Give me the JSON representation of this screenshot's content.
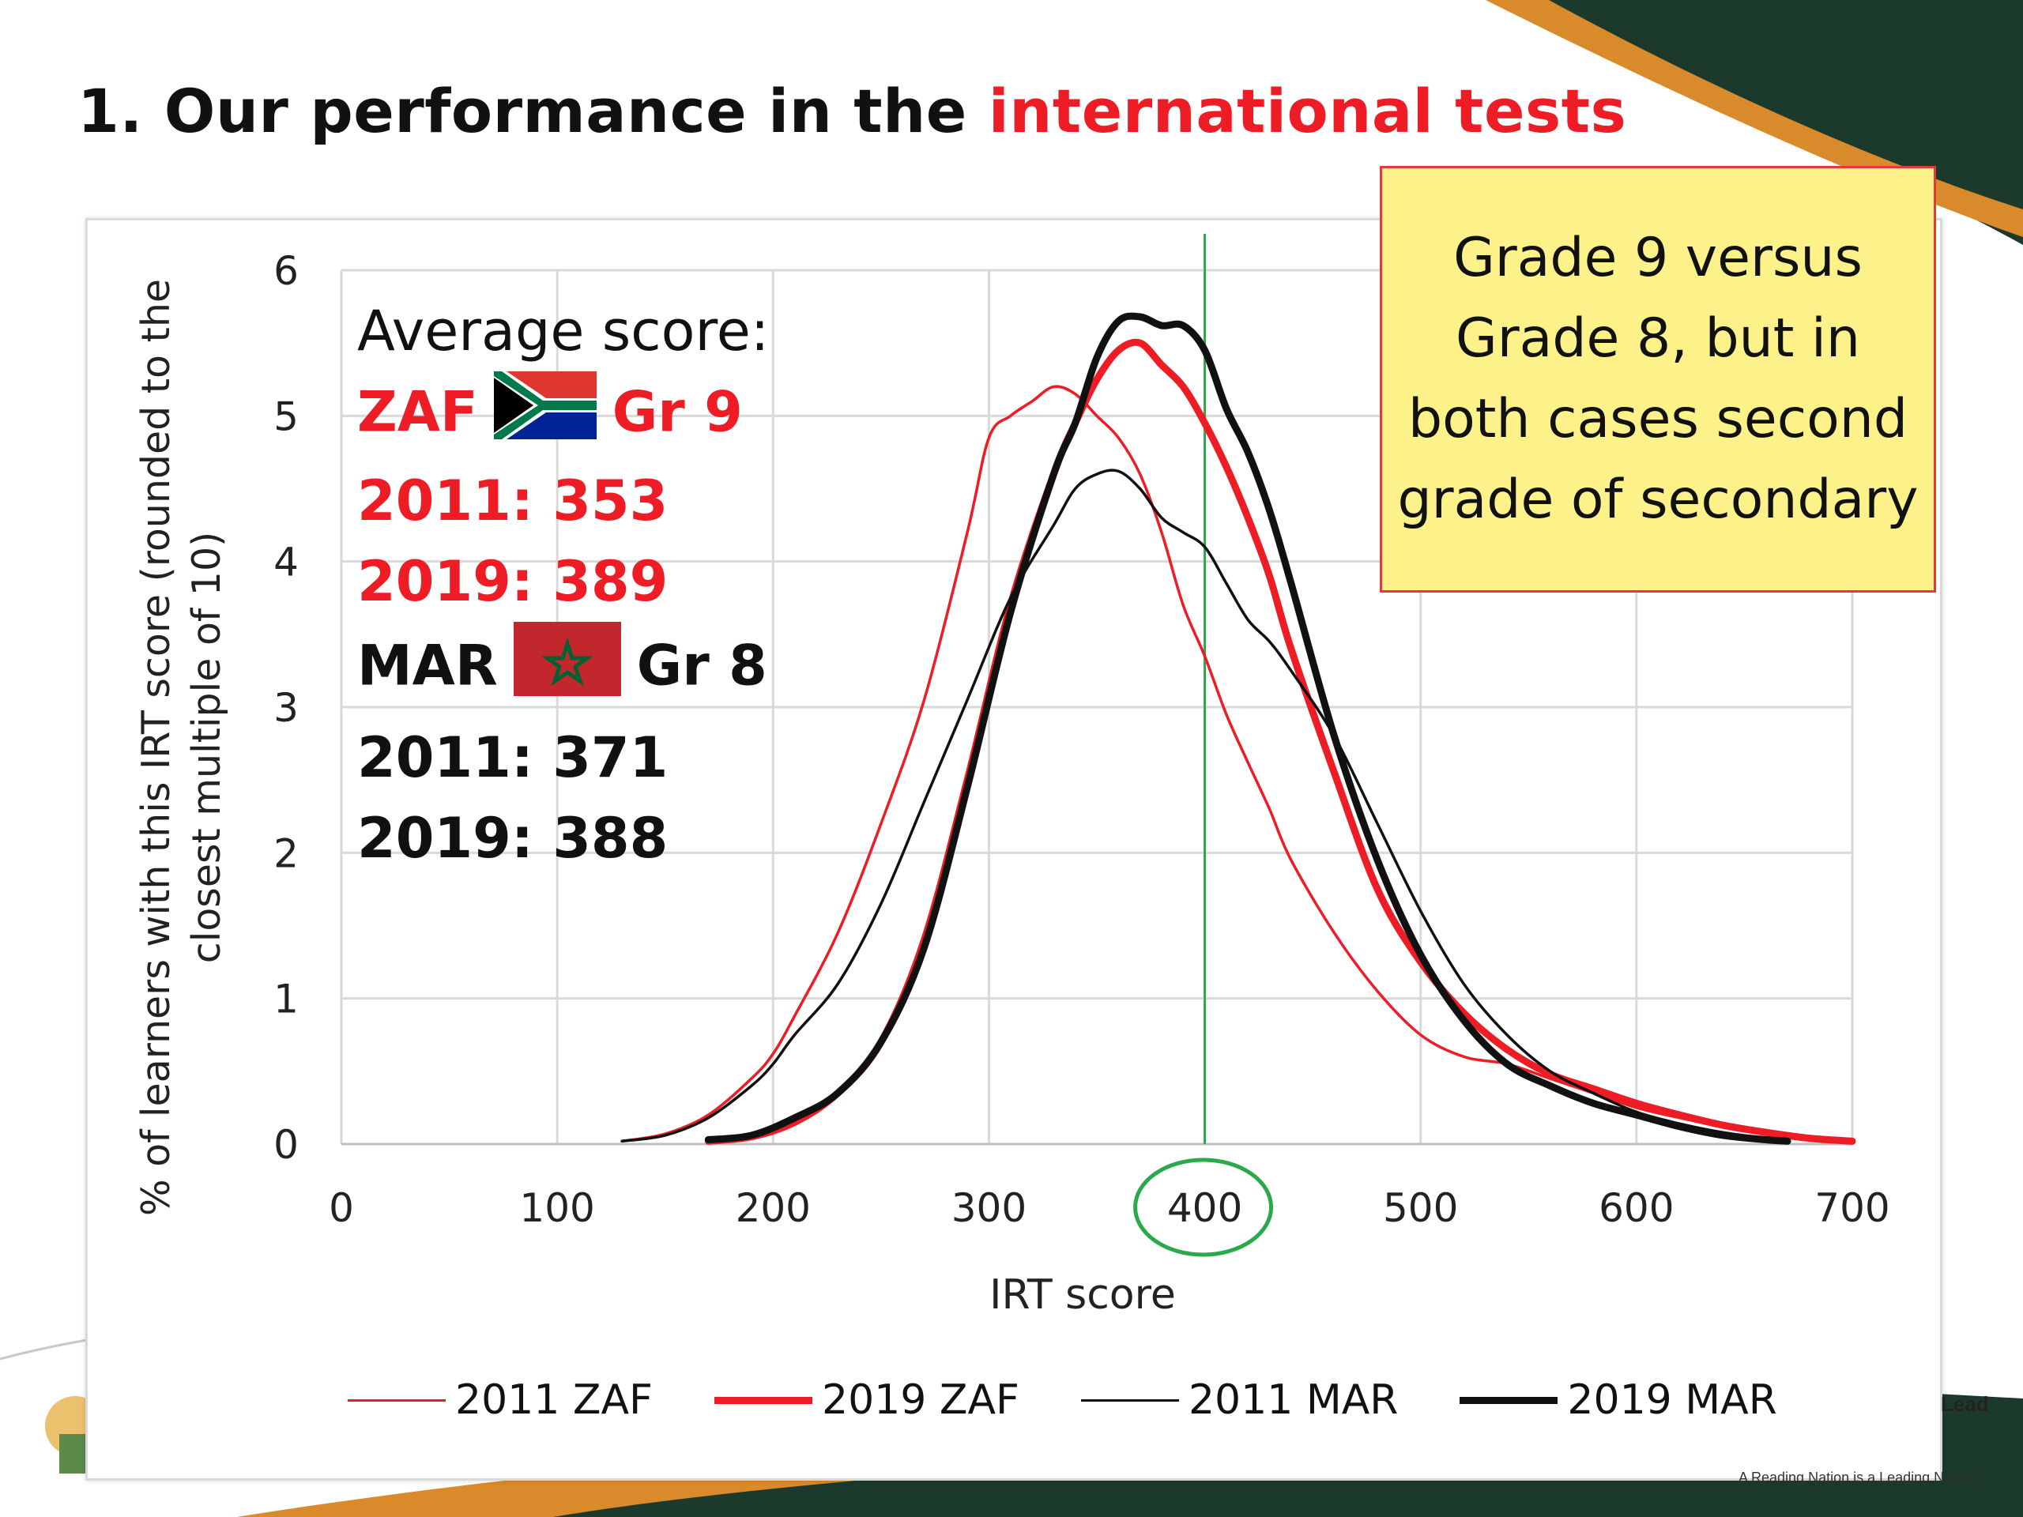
{
  "slide": {
    "title_prefix": "1. Our performance in the ",
    "title_highlight": "international tests",
    "note": "Grade 9 versus Grade 8, but in both cases second grade of secondary",
    "average": {
      "heading": "Average score:",
      "zaf_code": "ZAF",
      "zaf_grade": "Gr 9",
      "zaf_2011": "2011: 353",
      "zaf_2019": "2019: 389",
      "mar_code": "MAR",
      "mar_grade": "Gr 8",
      "mar_2011": "2011: 371",
      "mar_2019": "2019: 388"
    },
    "footer_tagline": "A Reading Nation is a Leading Nation",
    "footer_word": "Lead",
    "colors": {
      "red": "#ee1c25",
      "black": "#111111",
      "green": "#2aa94a",
      "note_bg": "#fdf18a"
    }
  },
  "chart_data": {
    "type": "line",
    "xlabel": "IRT score",
    "ylabel": "% of learners with this IRT score (rounded to the closest multiple of 10)",
    "xlim": [
      0,
      700
    ],
    "ylim": [
      0,
      6
    ],
    "xticks": [
      0,
      100,
      200,
      300,
      400,
      500,
      600,
      700
    ],
    "yticks": [
      0,
      1,
      2,
      3,
      4,
      5,
      6
    ],
    "grid": true,
    "legend_position": "bottom",
    "reference_line_x": 400,
    "highlighted_tick": "400",
    "series": [
      {
        "name": "2011 ZAF",
        "color": "#ee1c25",
        "width": "thin",
        "x": [
          130,
          150,
          170,
          190,
          200,
          210,
          230,
          250,
          270,
          290,
          300,
          310,
          320,
          330,
          340,
          350,
          360,
          370,
          380,
          390,
          400,
          410,
          420,
          430,
          440,
          460,
          480,
          500,
          520,
          540,
          560,
          580,
          600,
          620,
          640,
          660,
          680,
          700
        ],
        "y": [
          0.02,
          0.07,
          0.2,
          0.45,
          0.62,
          0.88,
          1.45,
          2.2,
          3.05,
          4.2,
          4.85,
          5.0,
          5.1,
          5.2,
          5.15,
          5.0,
          4.85,
          4.6,
          4.2,
          3.7,
          3.35,
          2.95,
          2.62,
          2.3,
          1.95,
          1.45,
          1.05,
          0.75,
          0.6,
          0.55,
          0.45,
          0.35,
          0.25,
          0.18,
          0.12,
          0.08,
          0.04,
          0.02
        ]
      },
      {
        "name": "2019 ZAF",
        "color": "#ee1c25",
        "width": "thick",
        "x": [
          170,
          190,
          210,
          230,
          250,
          270,
          290,
          310,
          330,
          340,
          350,
          360,
          370,
          380,
          390,
          400,
          410,
          420,
          430,
          440,
          460,
          480,
          500,
          520,
          540,
          560,
          580,
          600,
          620,
          640,
          660,
          680,
          700
        ],
        "y": [
          0.02,
          0.05,
          0.15,
          0.35,
          0.7,
          1.4,
          2.5,
          3.7,
          4.6,
          4.95,
          5.25,
          5.45,
          5.5,
          5.35,
          5.2,
          4.95,
          4.65,
          4.3,
          3.9,
          3.4,
          2.55,
          1.75,
          1.25,
          0.9,
          0.65,
          0.48,
          0.38,
          0.28,
          0.2,
          0.13,
          0.08,
          0.04,
          0.02
        ]
      },
      {
        "name": "2011 MAR",
        "color": "#111111",
        "width": "thin",
        "x": [
          130,
          150,
          170,
          190,
          200,
          210,
          230,
          250,
          270,
          290,
          310,
          330,
          340,
          350,
          360,
          370,
          380,
          390,
          400,
          410,
          420,
          430,
          440,
          460,
          480,
          500,
          520,
          540,
          560,
          580,
          600,
          620,
          640,
          660,
          670
        ],
        "y": [
          0.02,
          0.06,
          0.18,
          0.4,
          0.55,
          0.75,
          1.1,
          1.65,
          2.35,
          3.05,
          3.75,
          4.25,
          4.5,
          4.6,
          4.62,
          4.5,
          4.3,
          4.2,
          4.1,
          3.85,
          3.6,
          3.45,
          3.25,
          2.8,
          2.2,
          1.6,
          1.1,
          0.75,
          0.5,
          0.35,
          0.22,
          0.14,
          0.08,
          0.04,
          0.02
        ]
      },
      {
        "name": "2019 MAR",
        "color": "#111111",
        "width": "thick",
        "x": [
          170,
          190,
          210,
          230,
          250,
          270,
          290,
          310,
          330,
          340,
          350,
          360,
          370,
          380,
          390,
          400,
          410,
          420,
          430,
          440,
          460,
          480,
          500,
          520,
          540,
          560,
          580,
          600,
          620,
          640,
          660,
          670
        ],
        "y": [
          0.03,
          0.06,
          0.18,
          0.35,
          0.7,
          1.35,
          2.45,
          3.65,
          4.6,
          4.95,
          5.4,
          5.65,
          5.68,
          5.62,
          5.62,
          5.45,
          5.05,
          4.75,
          4.35,
          3.85,
          2.8,
          1.95,
          1.3,
          0.85,
          0.55,
          0.4,
          0.28,
          0.2,
          0.12,
          0.06,
          0.03,
          0.02
        ]
      }
    ]
  }
}
